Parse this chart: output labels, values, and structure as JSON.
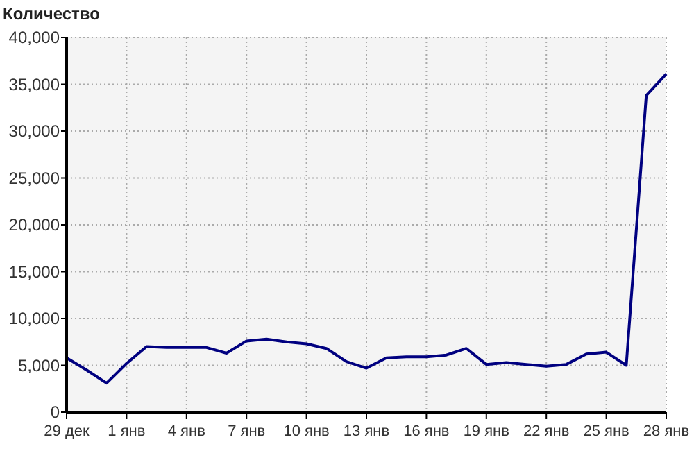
{
  "chart_data": {
    "type": "line",
    "ylabel": "Количество",
    "categories": [
      "29 дек",
      null,
      null,
      "1 янв",
      null,
      null,
      "4 янв",
      null,
      null,
      "7 янв",
      null,
      null,
      "10 янв",
      null,
      null,
      "13 янв",
      null,
      null,
      "16 янв",
      null,
      null,
      "19 янв",
      null,
      null,
      "22 янв",
      null,
      null,
      "25 янв",
      null,
      null,
      "28 янв"
    ],
    "series": [
      {
        "color": "#000080",
        "values": [
          5800,
          4500,
          3100,
          5200,
          7000,
          6900,
          6900,
          6900,
          6300,
          7600,
          7800,
          7500,
          7300,
          6800,
          5400,
          4700,
          5800,
          5900,
          5900,
          6100,
          6800,
          5100,
          5300,
          5100,
          4900,
          5100,
          6200,
          6400,
          5000,
          33800,
          36100
        ]
      }
    ],
    "ylim": [
      0,
      40000
    ],
    "yticks": [
      {
        "value": 0,
        "label": "0"
      },
      {
        "value": 5000,
        "label": "5,000"
      },
      {
        "value": 10000,
        "label": "10,000"
      },
      {
        "value": 15000,
        "label": "15,000"
      },
      {
        "value": 20000,
        "label": "20,000"
      },
      {
        "value": 25000,
        "label": "25,000"
      },
      {
        "value": 30000,
        "label": "30,000"
      },
      {
        "value": 35000,
        "label": "35,000"
      },
      {
        "value": 40000,
        "label": "40,000"
      }
    ],
    "grid": true,
    "line_style": "solid",
    "marker": "none"
  }
}
